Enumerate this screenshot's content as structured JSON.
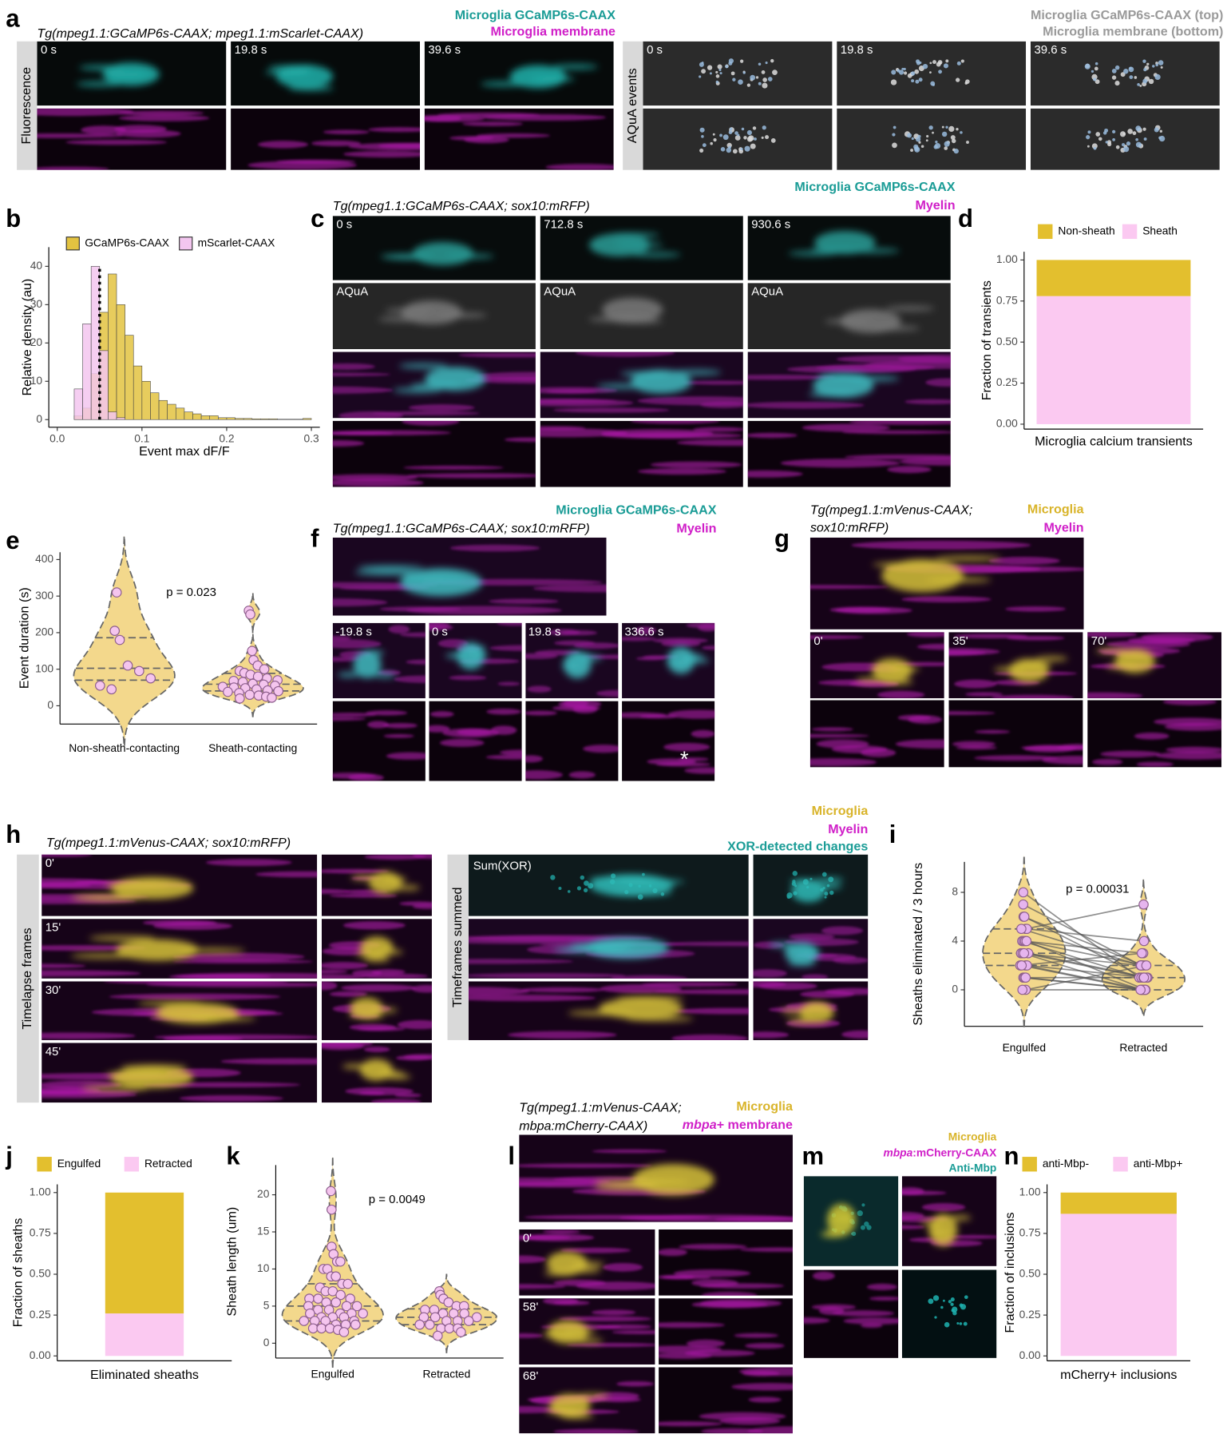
{
  "figure": {
    "a": {
      "label": "a",
      "genotype": "Tg(mpeg1.1:GCaMP6s-CAAX; mpeg1.1:mScarlet-CAAX)",
      "channels": [
        "Microglia GCaMP6s-CAAX",
        "Microglia membrane"
      ],
      "left_side": "Fluorescence",
      "left_times": [
        "0 s",
        "19.8 s",
        "39.6 s"
      ],
      "right_channels": [
        "Microglia GCaMP6s-CAAX (top)",
        "Microglia membrane (bottom)"
      ],
      "right_side": "AQuA events",
      "right_times": [
        "0 s",
        "19.8 s",
        "39.6 s"
      ]
    },
    "c": {
      "label": "c",
      "genotype": "Tg(mpeg1.1:GCaMP6s-CAAX; sox10:mRFP)",
      "channels": [
        "Microglia GCaMP6s-CAAX",
        "Myelin"
      ],
      "times": [
        "0 s",
        "712.8 s",
        "930.6 s"
      ],
      "aqua_labels": [
        "AQuA",
        "AQuA",
        "AQuA"
      ]
    },
    "f": {
      "label": "f",
      "genotype": "Tg(mpeg1.1:GCaMP6s-CAAX; sox10:mRFP)",
      "channels": [
        "Microglia GCaMP6s-CAAX",
        "Myelin"
      ],
      "times": [
        "-19.8 s",
        "0 s",
        "19.8 s",
        "336.6 s"
      ],
      "marker": "*"
    },
    "g": {
      "label": "g",
      "genotype": [
        "Tg(mpeg1.1:mVenus-CAAX;",
        "sox10:mRFP)"
      ],
      "channels": [
        "Microglia",
        "Myelin"
      ],
      "times": [
        "0'",
        "35'",
        "70'"
      ]
    },
    "h": {
      "label": "h",
      "genotype": "Tg(mpeg1.1:mVenus-CAAX; sox10:mRFP)",
      "channels": [
        "Microglia",
        "Myelin",
        "XOR-detected changes"
      ],
      "left_side": "Timelapse frames",
      "times": [
        "0'",
        "15'",
        "30'",
        "45'"
      ],
      "right_side": "Timeframes summed",
      "sum_label": "Sum(XOR)"
    },
    "l": {
      "label": "l",
      "genotype": [
        "Tg(mpeg1.1:mVenus-CAAX;",
        "mbpa:mCherry-CAAX)"
      ],
      "channel1": "Microglia",
      "channel2_italic": "mbpa",
      "channel2_rest": "+ membrane",
      "times": [
        "0'",
        "58'",
        "68'"
      ]
    },
    "m": {
      "label": "m",
      "channel1": "Microglia",
      "channel2_italic": "mbpa",
      "channel2_rest": ":mCherry-CAAX",
      "channel3": "Anti-Mbp"
    }
  },
  "chart_data": [
    {
      "label": "b",
      "type": "histogram",
      "bins": [
        0.01,
        0.02,
        0.03,
        0.04,
        0.05,
        0.06,
        0.07,
        0.08,
        0.09,
        0.1,
        0.11,
        0.12,
        0.13,
        0.14,
        0.15,
        0.16,
        0.17,
        0.18,
        0.19,
        0.2,
        0.21,
        0.22,
        0.23,
        0.24,
        0.25,
        0.26,
        0.27,
        0.28,
        0.29,
        0.3
      ],
      "series": [
        {
          "name": "GCaMP6s-CAAX",
          "color": "#e3c341",
          "values": [
            0,
            1,
            3,
            12,
            28,
            38,
            30,
            22,
            14,
            10,
            7,
            5,
            4,
            3,
            2,
            1.5,
            1,
            1,
            0.5,
            0.5,
            0.3,
            0.3,
            0.2,
            0.2,
            0.2,
            0.1,
            0.1,
            0.1,
            0.3
          ]
        },
        {
          "name": "mScarlet-CAAX",
          "color": "#f3c6ef",
          "values": [
            0,
            8,
            25,
            40,
            18,
            2,
            0.5,
            0,
            0,
            0,
            0,
            0,
            0,
            0,
            0,
            0,
            0,
            0,
            0,
            0,
            0,
            0,
            0,
            0,
            0,
            0,
            0,
            0,
            0
          ]
        }
      ],
      "reference_line": 0.05,
      "xlabel": "Event max dF/F",
      "ylabel": "Relative density (au)",
      "xlim": [
        -0.01,
        0.31
      ],
      "xticks": [
        {
          "value": 0,
          "label": "0.0"
        },
        0.1,
        0.2,
        0.3
      ],
      "ylim": [
        -2,
        45
      ],
      "yticks": [
        0,
        10,
        20,
        30,
        40
      ]
    },
    {
      "label": "d",
      "type": "stacked_bar",
      "categories": [
        "Microglia calcium transients"
      ],
      "series": [
        {
          "name": "Non-sheath",
          "color": "#e3bf2e",
          "values": [
            0.22
          ]
        },
        {
          "name": "Sheath",
          "color": "#fbc9f1",
          "values": [
            0.78
          ]
        }
      ],
      "ylabel": "Fraction of transients",
      "ylim": [
        -0.03,
        1.05
      ],
      "yticks": [
        {
          "value": 0,
          "label": "0.00"
        },
        0.25,
        {
          "value": 0.5,
          "label": "0.50"
        },
        0.75,
        {
          "value": 1,
          "label": "1.00"
        }
      ]
    },
    {
      "label": "e",
      "type": "violin",
      "categories": [
        "Non-sheath-contacting",
        "Sheath-contacting"
      ],
      "groups": [
        [
          310,
          205,
          180,
          110,
          95,
          75,
          55,
          45
        ],
        [
          260,
          250,
          150,
          125,
          110,
          100,
          95,
          90,
          85,
          80,
          75,
          70,
          68,
          65,
          60,
          58,
          55,
          52,
          50,
          48,
          45,
          42,
          40,
          38,
          35,
          30,
          28,
          25,
          22,
          20
        ]
      ],
      "violin_color": "#f3d88c",
      "point_color": "#f5c5ee",
      "annotation": "p = 0.023",
      "ylabel": "Event duration (s)",
      "ylim": [
        -50,
        420
      ],
      "yticks": [
        0,
        100,
        200,
        300,
        400
      ]
    },
    {
      "label": "i",
      "type": "paired_violin",
      "categories": [
        "Engulfed",
        "Retracted"
      ],
      "groups": [
        [
          8,
          7,
          6,
          6,
          5,
          5,
          5,
          4,
          4,
          4,
          4,
          3,
          3,
          3,
          3,
          2,
          2,
          2,
          2,
          1,
          1,
          1,
          0,
          0
        ],
        [
          1,
          2,
          2,
          1,
          7,
          4,
          2,
          1,
          3,
          2,
          0,
          1,
          2,
          0,
          1,
          0,
          1,
          3,
          0,
          0,
          1,
          0,
          2,
          0
        ]
      ],
      "violin_color": "#f3d88c",
      "point_color": "#e6b5ee",
      "annotation": "p = 0.00031",
      "ylabel": "Sheaths eliminated / 3 hours",
      "ylim": [
        -3,
        10.5
      ],
      "yticks": [
        0,
        4,
        8
      ]
    },
    {
      "label": "j",
      "type": "stacked_bar",
      "categories": [
        "Eliminated sheaths"
      ],
      "series": [
        {
          "name": "Engulfed",
          "color": "#e3bf2e",
          "values": [
            0.74
          ]
        },
        {
          "name": "Retracted",
          "color": "#fbc9f1",
          "values": [
            0.26
          ]
        }
      ],
      "ylabel": "Fraction of sheaths",
      "ylim": [
        -0.03,
        1.05
      ],
      "yticks": [
        {
          "value": 0,
          "label": "0.00"
        },
        0.25,
        {
          "value": 0.5,
          "label": "0.50"
        },
        0.75,
        {
          "value": 1,
          "label": "1.00"
        }
      ]
    },
    {
      "label": "k",
      "type": "violin",
      "categories": [
        "Engulfed",
        "Retracted"
      ],
      "groups": [
        [
          20.5,
          18,
          13,
          12,
          11,
          11,
          10,
          10,
          9,
          9,
          8,
          8,
          7.5,
          7,
          7,
          6.5,
          6,
          6,
          6,
          5.5,
          5.5,
          5,
          5,
          5,
          4.5,
          4.5,
          4,
          4,
          4,
          4,
          3.5,
          3.5,
          3.5,
          3,
          3,
          3,
          3,
          2.5,
          2.5,
          2.5,
          2,
          2,
          2,
          1.8,
          1.5
        ],
        [
          7,
          6.5,
          6,
          5.5,
          5,
          5,
          4.5,
          4.5,
          4,
          4,
          4,
          3.5,
          3.5,
          3.5,
          3,
          3,
          3,
          2.5,
          2.5,
          2,
          2,
          2,
          1.5,
          1
        ]
      ],
      "violin_color": "#f3d88c",
      "point_color": "#f5c5ee",
      "annotation": "p = 0.0049",
      "ylabel": "Sheath length (um)",
      "ylim": [
        -2,
        24
      ],
      "yticks": [
        0,
        5,
        10,
        15,
        20
      ]
    },
    {
      "label": "n",
      "type": "stacked_bar",
      "categories": [
        "mCherry+ inclusions"
      ],
      "series": [
        {
          "name": "anti-Mbp-",
          "color": "#e3bf2e",
          "values": [
            0.13
          ]
        },
        {
          "name": "anti-Mbp+",
          "color": "#fbc9f1",
          "values": [
            0.87
          ]
        }
      ],
      "ylabel": "Fraction of inclusions",
      "ylim": [
        -0.03,
        1.05
      ],
      "yticks": [
        {
          "value": 0,
          "label": "0.00"
        },
        0.25,
        {
          "value": 0.5,
          "label": "0.50"
        },
        0.75,
        {
          "value": 1,
          "label": "1.00"
        }
      ]
    }
  ]
}
